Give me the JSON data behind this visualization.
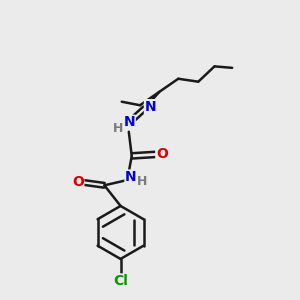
{
  "background_color": "#ebebeb",
  "bond_color": "#1a1a1a",
  "bond_width": 1.8,
  "atom_colors": {
    "C": "#1a1a1a",
    "N": "#0000dd",
    "O": "#dd0000",
    "Cl": "#009900",
    "H": "#7a7a7a"
  },
  "font_size": 9,
  "figsize": [
    3.0,
    3.0
  ],
  "dpi": 100
}
